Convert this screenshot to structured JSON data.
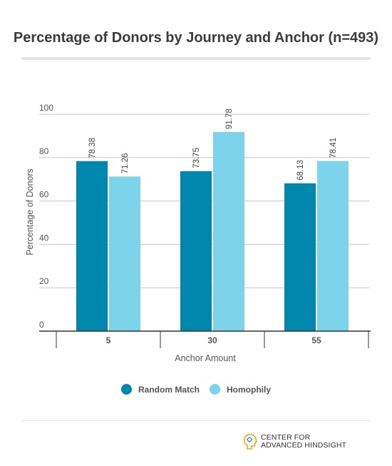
{
  "title": "Percentage of Donors by Journey and Anchor (n=493)",
  "colors": {
    "random_match": "#0087ae",
    "homophily": "#7dd3ea"
  },
  "chart_data": {
    "type": "bar",
    "title": "Percentage of Donors by Journey and Anchor (n=493)",
    "xlabel": "Anchor Amount",
    "ylabel": "Percentage of Donors",
    "ylim": [
      0,
      100
    ],
    "yticks": [
      0,
      20,
      40,
      60,
      80,
      100
    ],
    "categories": [
      "5",
      "30",
      "55"
    ],
    "series": [
      {
        "name": "Random Match",
        "values": [
          78.38,
          73.75,
          68.13
        ],
        "color": "#0087ae"
      },
      {
        "name": "Homophily",
        "values": [
          71.26,
          91.78,
          78.41
        ],
        "color": "#7dd3ea"
      }
    ],
    "data_labels": [
      [
        "78.38",
        "73.75",
        "68.13"
      ],
      [
        "71.26",
        "91.78",
        "78.41"
      ]
    ],
    "grid": true,
    "legend": "bottom"
  },
  "legend": {
    "random_match": "Random Match",
    "homophily": "Homophily"
  },
  "footer": {
    "logo_line1": "CENTER FOR",
    "logo_line2": "ADVANCED HINDSIGHT"
  }
}
